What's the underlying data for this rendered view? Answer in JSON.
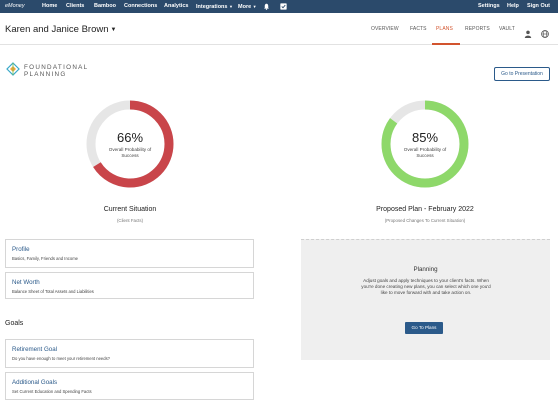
{
  "topnav": {
    "brand": "eMoney",
    "items": [
      "Home",
      "Clients",
      "Bamboo",
      "Connections",
      "Analytics",
      "Integrations",
      "More"
    ],
    "right": [
      "Settings",
      "Help",
      "Sign Out"
    ]
  },
  "header": {
    "client_name": "Karen and Janice Brown",
    "tabs": [
      "OVERVIEW",
      "FACTS",
      "PLANS",
      "REPORTS",
      "VAULT"
    ],
    "active_tab": "PLANS"
  },
  "branding": {
    "line1": "FOUNDATIONAL",
    "line2": "PLANNING"
  },
  "present_button": "Go to Presentation",
  "current": {
    "percent_text": "66%",
    "probability": 66,
    "label": "Overall Probability of Success",
    "title": "Current Situation",
    "subtitle": "(Client Facts)",
    "color": "#c9454a"
  },
  "proposed": {
    "percent_text": "85%",
    "probability": 85,
    "label": "Overall Probability of Success",
    "title": "Proposed Plan - February 2022",
    "subtitle": "(Proposed Changes To Current Situation)",
    "color": "#8ed86a"
  },
  "facts_cards": [
    {
      "title": "Profile",
      "description": "Basics, Family, Friends and Income"
    },
    {
      "title": "Net Worth",
      "description": "Balance Sheet of Total Assets and Liabilities"
    }
  ],
  "goals": {
    "heading": "Goals",
    "cards": [
      {
        "title": "Retirement Goal",
        "description": "Do you have enough to meet your retirement needs?"
      },
      {
        "title": "Additional Goals",
        "description": "Set Current Education and Spending Facts"
      }
    ]
  },
  "planning_panel": {
    "title": "Planning",
    "text": "Adjust goals and apply techniques to your client's facts. When you're done creating new plans, you can select which one you'd like to move forward with and take action on.",
    "button": "Go To Plans"
  }
}
